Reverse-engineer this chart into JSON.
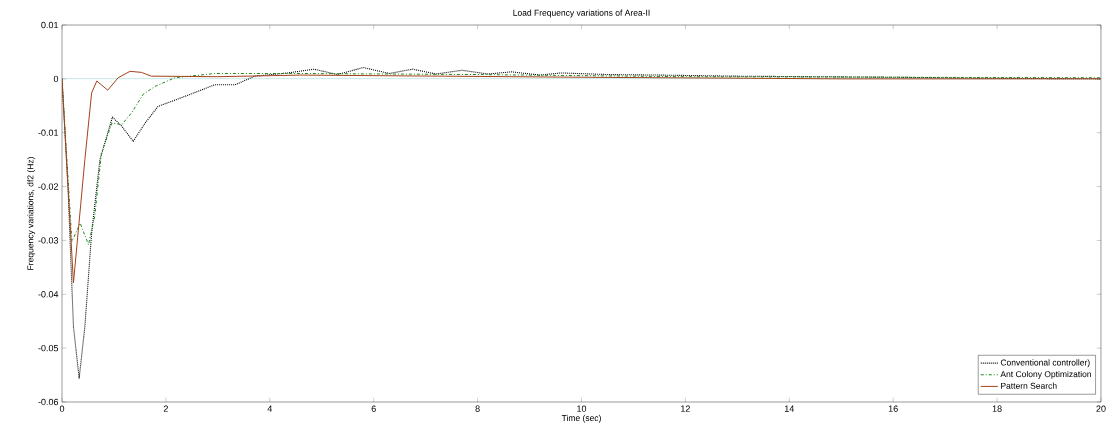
{
  "chart_data": {
    "type": "line",
    "title": "Load Frequency variations of Area-II",
    "xlabel": "Time (sec)",
    "ylabel": "Frequency variations, df2 (Hz)",
    "xlim": [
      0,
      20
    ],
    "ylim": [
      -0.06,
      0.01
    ],
    "xticks": [
      0,
      2,
      4,
      6,
      8,
      10,
      12,
      14,
      16,
      18,
      20
    ],
    "yticks": [
      0.01,
      0,
      -0.01,
      -0.02,
      -0.03,
      -0.04,
      -0.05,
      -0.06
    ],
    "grid": false,
    "legend": "bottom right",
    "ref_lines": [
      {
        "axis": "y",
        "value": 0,
        "color": "#40b0b0"
      }
    ],
    "series": [
      {
        "name": "Conventional controller)",
        "color": "#000000",
        "line_style": "dotted",
        "x": [
          0,
          0.12,
          0.22,
          0.33,
          0.44,
          0.57,
          0.73,
          0.97,
          1.15,
          1.37,
          1.6,
          1.85,
          2.3,
          2.94,
          3.33,
          3.71,
          4.35,
          4.85,
          5.3,
          5.8,
          6.3,
          6.75,
          7.2,
          7.7,
          8.2,
          8.65,
          9.2,
          9.6,
          10.5,
          11.5,
          13,
          14.5,
          16,
          18,
          20
        ],
        "values": [
          0,
          -0.0212,
          -0.046,
          -0.0556,
          -0.046,
          -0.0286,
          -0.015,
          -0.0071,
          -0.0088,
          -0.0116,
          -0.0082,
          -0.0051,
          -0.0035,
          -0.0011,
          -0.0011,
          0.0005,
          0.0011,
          0.0018,
          0.0008,
          0.0021,
          0.001,
          0.0018,
          0.0009,
          0.0016,
          0.0009,
          0.0013,
          0.0007,
          0.0011,
          0.0008,
          0.0007,
          0.0005,
          0.0004,
          0.0003,
          0.0001,
          0
        ]
      },
      {
        "name": "Ant Colony Optimization",
        "color": "#1a8a1a",
        "line_style": "dashdot",
        "x": [
          0,
          0.19,
          0.35,
          0.51,
          0.63,
          0.76,
          0.96,
          1.15,
          1.34,
          1.56,
          1.79,
          2.17,
          2.94,
          4.5,
          8,
          12,
          16,
          20
        ],
        "values": [
          0,
          -0.0302,
          -0.0268,
          -0.0308,
          -0.0255,
          -0.0138,
          -0.0082,
          -0.0085,
          -0.0063,
          -0.0029,
          -0.0014,
          0.0002,
          0.001,
          0.001,
          0.0008,
          0.0004,
          0.0003,
          0.0002
        ]
      },
      {
        "name": "Pattern Search",
        "color": "#a5401a",
        "line_style": "solid",
        "x": [
          0,
          0.22,
          0.44,
          0.57,
          0.67,
          0.88,
          1.08,
          1.31,
          1.53,
          1.72,
          3,
          4.6,
          10,
          15,
          20
        ],
        "values": [
          0,
          -0.0379,
          -0.015,
          -0.0026,
          -0.0004,
          -0.0021,
          0.0002,
          0.0014,
          0.0012,
          0.0005,
          0.0004,
          0.0007,
          0.0003,
          0,
          0
        ]
      }
    ]
  }
}
